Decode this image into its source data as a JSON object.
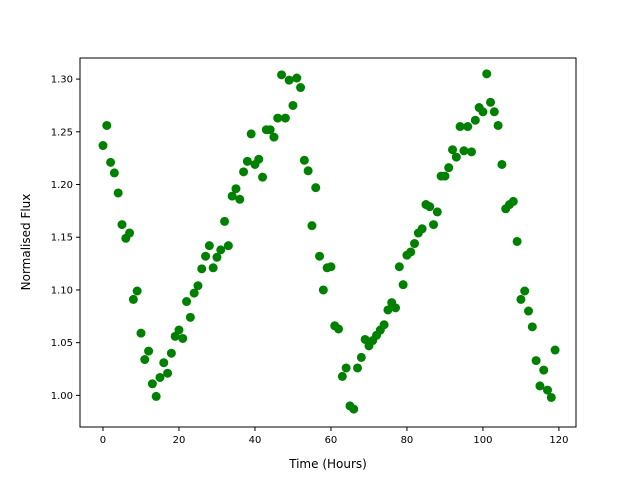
{
  "chart_data": {
    "type": "scatter",
    "title": "",
    "xlabel": "Time (Hours)",
    "ylabel": "Normalised Flux",
    "xlim": [
      -6.05,
      124.5
    ],
    "ylim": [
      0.97,
      1.32
    ],
    "xticks": [
      0,
      20,
      40,
      60,
      80,
      100,
      120
    ],
    "xtick_labels": [
      "0",
      "20",
      "40",
      "60",
      "80",
      "100",
      "120"
    ],
    "yticks": [
      1.0,
      1.05,
      1.1,
      1.15,
      1.2,
      1.25,
      1.3
    ],
    "ytick_labels": [
      "1.00",
      "1.05",
      "1.10",
      "1.15",
      "1.20",
      "1.25",
      "1.30"
    ],
    "grid": false,
    "marker_color": "#008000",
    "x": [
      0,
      1,
      2,
      3,
      4,
      5,
      6,
      7,
      8,
      9,
      10,
      11,
      12,
      13,
      14,
      15,
      16,
      17,
      18,
      19,
      20,
      21,
      22,
      23,
      24,
      25,
      26,
      27,
      28,
      29,
      30,
      31,
      32,
      33,
      34,
      35,
      36,
      37,
      38,
      39,
      40,
      41,
      42,
      43,
      44,
      45,
      46,
      47,
      48,
      49,
      50,
      51,
      52,
      53,
      54,
      55,
      56,
      57,
      58,
      59,
      60,
      61,
      62,
      63,
      64,
      65,
      66,
      67,
      68,
      69,
      70,
      71,
      72,
      73,
      74,
      75,
      76,
      77,
      78,
      79,
      80,
      81,
      82,
      83,
      84,
      85,
      86,
      87,
      88,
      89,
      90,
      91,
      92,
      93,
      94,
      95,
      96,
      97,
      98,
      99,
      100,
      101,
      102,
      103,
      104,
      105,
      106,
      107,
      108,
      109,
      110,
      111,
      112,
      113,
      114,
      115,
      116,
      117,
      118,
      119
    ],
    "y": [
      1.237,
      1.256,
      1.221,
      1.211,
      1.192,
      1.162,
      1.149,
      1.154,
      1.091,
      1.099,
      1.059,
      1.034,
      1.042,
      1.011,
      0.999,
      1.017,
      1.031,
      1.021,
      1.04,
      1.056,
      1.062,
      1.054,
      1.089,
      1.074,
      1.097,
      1.104,
      1.12,
      1.132,
      1.142,
      1.121,
      1.131,
      1.138,
      1.165,
      1.142,
      1.189,
      1.196,
      1.186,
      1.212,
      1.222,
      1.248,
      1.219,
      1.224,
      1.207,
      1.252,
      1.252,
      1.245,
      1.263,
      1.304,
      1.263,
      1.299,
      1.275,
      1.301,
      1.292,
      1.223,
      1.213,
      1.161,
      1.197,
      1.132,
      1.1,
      1.121,
      1.122,
      1.066,
      1.063,
      1.018,
      1.026,
      0.99,
      0.987,
      1.026,
      1.036,
      1.053,
      1.047,
      1.052,
      1.057,
      1.062,
      1.067,
      1.081,
      1.088,
      1.083,
      1.122,
      1.105,
      1.133,
      1.136,
      1.144,
      1.154,
      1.158,
      1.181,
      1.179,
      1.162,
      1.174,
      1.208,
      1.208,
      1.216,
      1.233,
      1.226,
      1.255,
      1.232,
      1.255,
      1.231,
      1.261,
      1.273,
      1.269,
      1.305,
      1.278,
      1.269,
      1.256,
      1.219,
      1.177,
      1.181,
      1.184,
      1.146,
      1.091,
      1.099,
      1.08,
      1.065,
      1.033,
      1.009,
      1.024,
      1.005,
      0.998,
      1.043
    ]
  }
}
